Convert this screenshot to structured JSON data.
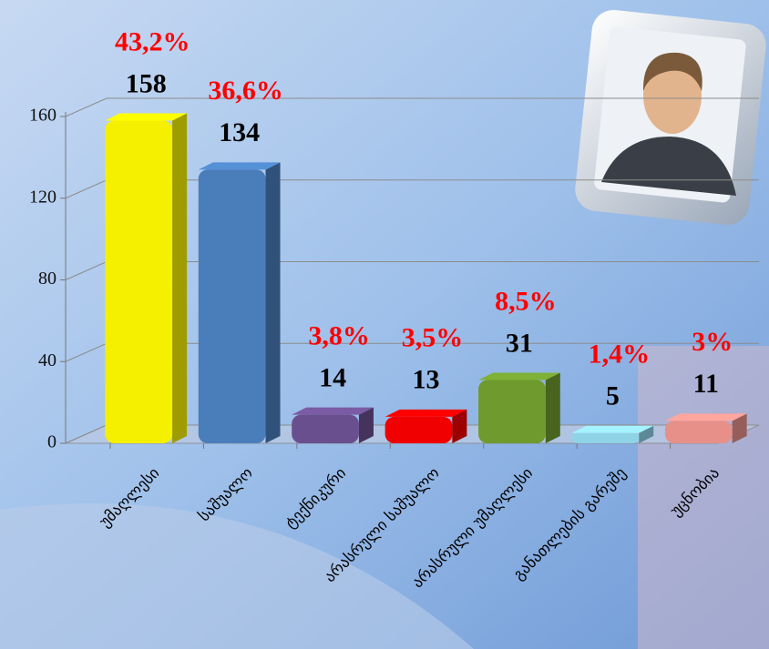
{
  "chart_data": {
    "type": "bar",
    "categories": [
      "უმაღლესი",
      "საშუალო",
      "ტექნიკური",
      "არასრული საშუალო",
      "არასრული უმაღლესი",
      "განათლების გარეშე",
      "უცნობია"
    ],
    "values": [
      158,
      134,
      14,
      13,
      31,
      5,
      11
    ],
    "percent_labels": [
      "43,2%",
      "36,6%",
      "3,8%",
      "3,5%",
      "8,5%",
      "1,4%",
      "3%"
    ],
    "colors": [
      "#f5f000",
      "#4a7ebb",
      "#6a4f8f",
      "#f00000",
      "#6e9a2e",
      "#8fd3e6",
      "#e7908a"
    ],
    "ylim": [
      0,
      160
    ],
    "yticks": [
      0,
      40,
      80,
      120,
      160
    ],
    "grid": true
  }
}
